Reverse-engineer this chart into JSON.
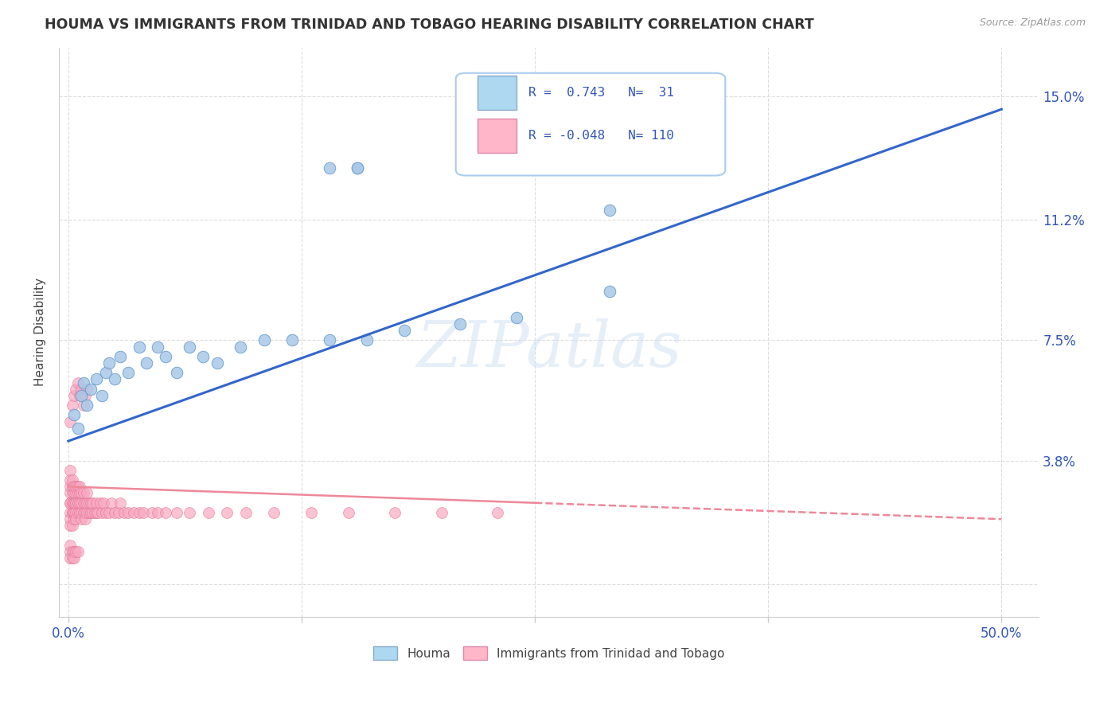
{
  "title": "HOUMA VS IMMIGRANTS FROM TRINIDAD AND TOBAGO HEARING DISABILITY CORRELATION CHART",
  "source": "Source: ZipAtlas.com",
  "ylabel": "Hearing Disability",
  "watermark": "ZIPatlas",
  "series1_color": "#A8C8E8",
  "series1_edge": "#6699CC",
  "series2_color": "#F8A8C0",
  "series2_edge": "#E07090",
  "line1_color": "#3366CC",
  "line2_color": "#EE8899",
  "line1_x0": 0.0,
  "line1_y0": 0.044,
  "line1_x1": 0.5,
  "line1_y1": 0.146,
  "line2_x0": 0.0,
  "line2_y0": 0.03,
  "line2_x1": 0.5,
  "line2_y1": 0.02,
  "line2_solid_end": 0.25,
  "xlim": [
    -0.005,
    0.52
  ],
  "ylim": [
    -0.01,
    0.165
  ],
  "xtick_positions": [
    0.0,
    0.125,
    0.25,
    0.375,
    0.5
  ],
  "xtick_labels": [
    "0.0%",
    "",
    "",
    "",
    "50.0%"
  ],
  "ytick_positions": [
    0.0,
    0.038,
    0.075,
    0.112,
    0.15
  ],
  "ytick_labels": [
    "",
    "3.8%",
    "7.5%",
    "11.2%",
    "15.0%"
  ],
  "houma_x": [
    0.003,
    0.005,
    0.007,
    0.008,
    0.01,
    0.012,
    0.015,
    0.018,
    0.02,
    0.022,
    0.025,
    0.028,
    0.032,
    0.038,
    0.042,
    0.048,
    0.052,
    0.058,
    0.065,
    0.072,
    0.08,
    0.092,
    0.105,
    0.12,
    0.14,
    0.16,
    0.18,
    0.21,
    0.24,
    0.29,
    0.155
  ],
  "houma_y": [
    0.052,
    0.048,
    0.058,
    0.062,
    0.055,
    0.06,
    0.063,
    0.058,
    0.065,
    0.068,
    0.063,
    0.07,
    0.065,
    0.073,
    0.068,
    0.073,
    0.07,
    0.065,
    0.073,
    0.07,
    0.068,
    0.073,
    0.075,
    0.075,
    0.075,
    0.075,
    0.078,
    0.08,
    0.082,
    0.09,
    0.128
  ],
  "tt_x_dense": [
    0.001,
    0.001,
    0.001,
    0.001,
    0.001,
    0.001,
    0.001,
    0.001,
    0.001,
    0.002,
    0.002,
    0.002,
    0.002,
    0.002,
    0.002,
    0.002,
    0.002,
    0.003,
    0.003,
    0.003,
    0.003,
    0.003,
    0.003,
    0.003,
    0.004,
    0.004,
    0.004,
    0.004,
    0.004,
    0.004,
    0.005,
    0.005,
    0.005,
    0.005,
    0.005,
    0.006,
    0.006,
    0.006,
    0.006,
    0.007,
    0.007,
    0.007,
    0.007,
    0.008,
    0.008,
    0.008,
    0.009,
    0.009,
    0.009,
    0.01,
    0.01,
    0.01,
    0.011,
    0.011,
    0.012,
    0.012,
    0.013,
    0.013,
    0.014,
    0.015,
    0.015,
    0.016,
    0.017,
    0.018,
    0.019,
    0.02,
    0.022,
    0.023,
    0.025,
    0.027,
    0.028,
    0.03,
    0.032,
    0.035,
    0.038,
    0.04,
    0.045,
    0.048,
    0.052,
    0.058,
    0.065,
    0.075,
    0.085,
    0.095,
    0.11,
    0.13,
    0.15,
    0.175,
    0.2,
    0.23
  ],
  "tt_y_dense": [
    0.022,
    0.025,
    0.028,
    0.03,
    0.032,
    0.035,
    0.025,
    0.02,
    0.018,
    0.022,
    0.025,
    0.028,
    0.03,
    0.022,
    0.018,
    0.025,
    0.032,
    0.022,
    0.025,
    0.028,
    0.02,
    0.03,
    0.025,
    0.022,
    0.022,
    0.025,
    0.028,
    0.03,
    0.025,
    0.02,
    0.022,
    0.025,
    0.028,
    0.03,
    0.025,
    0.022,
    0.025,
    0.028,
    0.03,
    0.022,
    0.025,
    0.028,
    0.02,
    0.022,
    0.025,
    0.028,
    0.022,
    0.025,
    0.02,
    0.022,
    0.025,
    0.028,
    0.022,
    0.025,
    0.022,
    0.025,
    0.022,
    0.025,
    0.022,
    0.022,
    0.025,
    0.022,
    0.025,
    0.022,
    0.025,
    0.022,
    0.022,
    0.025,
    0.022,
    0.022,
    0.025,
    0.022,
    0.022,
    0.022,
    0.022,
    0.022,
    0.022,
    0.022,
    0.022,
    0.022,
    0.022,
    0.022,
    0.022,
    0.022,
    0.022,
    0.022,
    0.022,
    0.022,
    0.022,
    0.022
  ],
  "tt_x_scatter": [
    0.001,
    0.001,
    0.001,
    0.002,
    0.002,
    0.003,
    0.003,
    0.004,
    0.005,
    0.001,
    0.002,
    0.003,
    0.004,
    0.005,
    0.006,
    0.007,
    0.008,
    0.009,
    0.01
  ],
  "tt_y_scatter": [
    0.01,
    0.008,
    0.012,
    0.01,
    0.008,
    0.01,
    0.008,
    0.01,
    0.01,
    0.05,
    0.055,
    0.058,
    0.06,
    0.062,
    0.058,
    0.06,
    0.055,
    0.058,
    0.06
  ]
}
